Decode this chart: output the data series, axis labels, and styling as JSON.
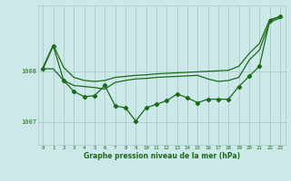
{
  "xlabel": "Graphe pression niveau de la mer (hPa)",
  "bg_color": "#cce8e8",
  "plot_bg_color": "#cce8e8",
  "grid_color": "#aacccc",
  "line_color": "#1a6b1a",
  "ylim": [
    1006.55,
    1009.3
  ],
  "yticks": [
    1007,
    1008
  ],
  "hours": [
    0,
    1,
    2,
    3,
    4,
    5,
    6,
    7,
    8,
    9,
    10,
    11,
    12,
    13,
    14,
    15,
    16,
    17,
    18,
    19,
    20,
    21,
    22,
    23
  ],
  "series1": [
    1008.08,
    1008.52,
    1008.08,
    1007.88,
    1007.82,
    1007.8,
    1007.82,
    1007.88,
    1007.9,
    1007.92,
    1007.93,
    1007.95,
    1007.96,
    1007.97,
    1007.98,
    1007.99,
    1008.0,
    1008.01,
    1008.02,
    1008.1,
    1008.35,
    1008.55,
    1009.02,
    1009.08
  ],
  "series2": [
    1008.05,
    1008.05,
    1007.82,
    1007.72,
    1007.7,
    1007.68,
    1007.65,
    1007.78,
    1007.82,
    1007.85,
    1007.86,
    1007.88,
    1007.89,
    1007.9,
    1007.91,
    1007.92,
    1007.85,
    1007.8,
    1007.82,
    1007.88,
    1008.22,
    1008.42,
    1008.97,
    1009.05
  ],
  "series3": [
    1008.05,
    1008.5,
    1007.82,
    1007.6,
    1007.5,
    1007.52,
    1007.72,
    1007.32,
    1007.28,
    1007.02,
    1007.28,
    1007.35,
    1007.42,
    1007.55,
    1007.48,
    1007.38,
    1007.45,
    1007.45,
    1007.45,
    1007.7,
    1007.9,
    1008.1,
    1009.0,
    1009.08
  ],
  "xlim": [
    -0.5,
    23.5
  ],
  "figw": 3.2,
  "figh": 2.0,
  "dpi": 100
}
